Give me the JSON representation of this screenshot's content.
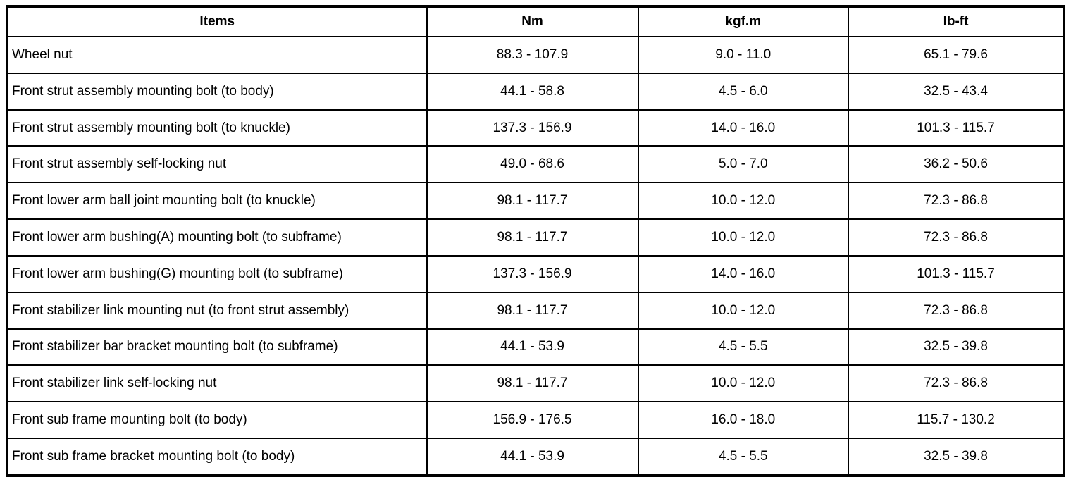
{
  "table": {
    "columns": [
      "Items",
      "Nm",
      "kgf.m",
      "lb-ft"
    ],
    "rows": [
      [
        "Wheel nut",
        "88.3 - 107.9",
        "9.0 - 11.0",
        "65.1 - 79.6"
      ],
      [
        "Front strut assembly mounting bolt (to body)",
        "44.1 - 58.8",
        "4.5 - 6.0",
        "32.5 - 43.4"
      ],
      [
        "Front strut assembly mounting bolt (to knuckle)",
        "137.3 - 156.9",
        "14.0 - 16.0",
        "101.3 - 115.7"
      ],
      [
        "Front strut assembly self-locking nut",
        "49.0 - 68.6",
        "5.0 - 7.0",
        "36.2 - 50.6"
      ],
      [
        "Front lower arm ball joint mounting bolt (to knuckle)",
        "98.1 - 117.7",
        "10.0 - 12.0",
        "72.3 - 86.8"
      ],
      [
        "Front lower arm bushing(A) mounting bolt (to subframe)",
        "98.1 - 117.7",
        "10.0 - 12.0",
        "72.3 - 86.8"
      ],
      [
        "Front lower arm bushing(G) mounting bolt (to subframe)",
        "137.3 - 156.9",
        "14.0 - 16.0",
        "101.3 - 115.7"
      ],
      [
        "Front stabilizer link mounting nut (to front strut assembly)",
        "98.1 - 117.7",
        "10.0 - 12.0",
        "72.3 - 86.8"
      ],
      [
        "Front stabilizer bar bracket mounting bolt (to subframe)",
        "44.1 - 53.9",
        "4.5 - 5.5",
        "32.5 - 39.8"
      ],
      [
        "Front stabilizer link self-locking nut",
        "98.1 - 117.7",
        "10.0 - 12.0",
        "72.3 - 86.8"
      ],
      [
        "Front sub frame mounting bolt (to body)",
        "156.9 - 176.5",
        "16.0 - 18.0",
        "115.7 - 130.2"
      ],
      [
        "Front sub frame bracket mounting bolt (to body)",
        "44.1 - 53.9",
        "4.5 - 5.5",
        "32.5 - 39.8"
      ]
    ]
  },
  "colors": {
    "border": "#000000",
    "background": "#ffffff",
    "text": "#000000"
  }
}
